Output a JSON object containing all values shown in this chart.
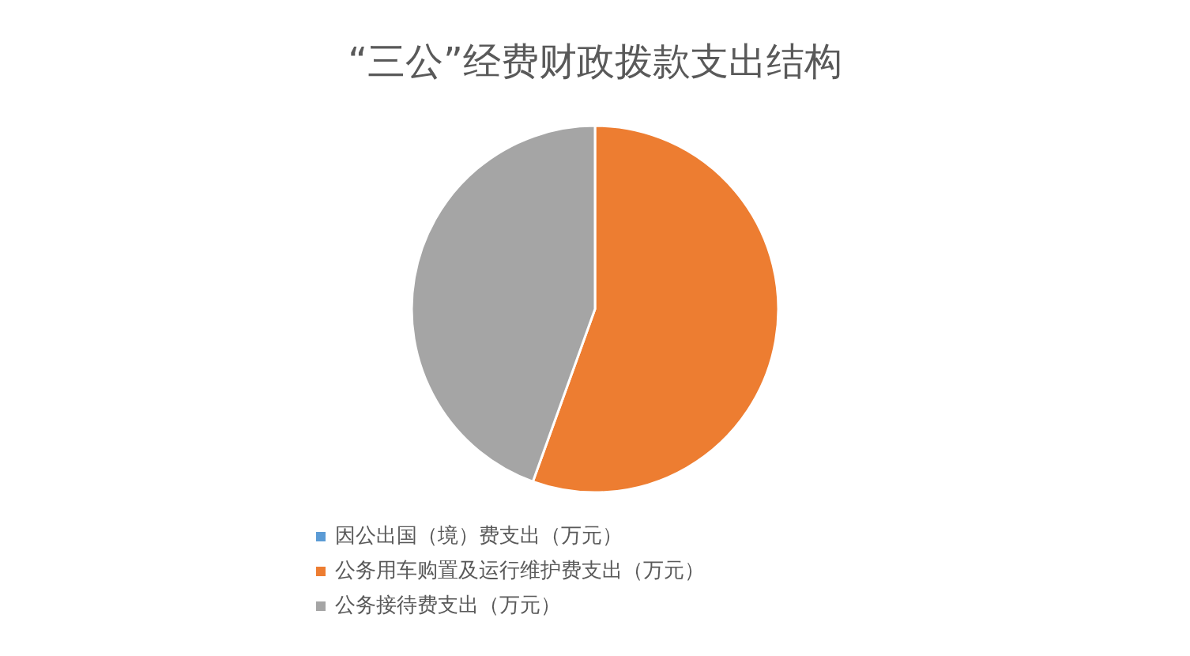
{
  "chart_data": {
    "type": "pie",
    "title": "“三公”经费财政拨款支出结构",
    "categories": [
      "因公出国（境）费支出（万元）",
      "公务用车购置及运行维护费支出（万元）",
      "公务接待费支出（万元）"
    ],
    "values": [
      0,
      55.5,
      44.5
    ],
    "colors": [
      "#5b9bd5",
      "#ed7d31",
      "#a5a5a5"
    ],
    "legend": "bottom"
  }
}
